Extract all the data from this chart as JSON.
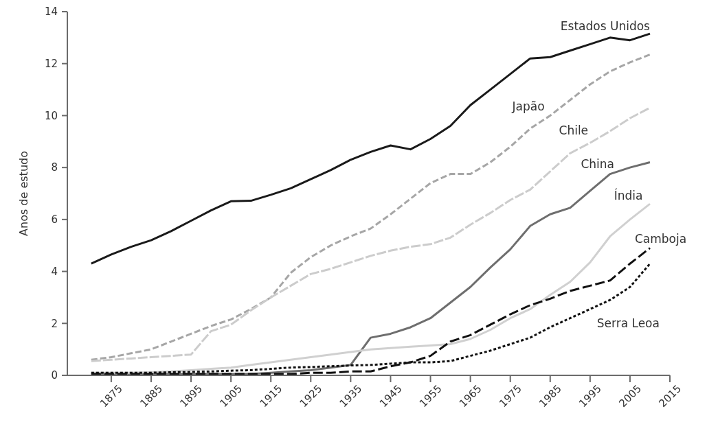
{
  "chart_data": {
    "type": "line",
    "ylabel": "Anos de estudo",
    "x": [
      1870,
      1875,
      1880,
      1885,
      1890,
      1895,
      1900,
      1905,
      1910,
      1915,
      1920,
      1925,
      1930,
      1935,
      1940,
      1945,
      1950,
      1955,
      1960,
      1965,
      1970,
      1975,
      1980,
      1985,
      1990,
      1995,
      2000,
      2005,
      2010
    ],
    "xlim": [
      1864,
      2015
    ],
    "xticks": [
      1875,
      1885,
      1895,
      1905,
      1915,
      1925,
      1935,
      1945,
      1955,
      1965,
      1975,
      1985,
      1995,
      2005,
      2015
    ],
    "ylim": [
      0,
      14
    ],
    "yticks": [
      0,
      2,
      4,
      6,
      8,
      10,
      12,
      14
    ],
    "marker": "none",
    "series": [
      {
        "name": "Estados Unidos",
        "color": "#1a1a1a",
        "line_style": "solid",
        "values": [
          4.3,
          4.65,
          4.95,
          5.2,
          5.55,
          5.95,
          6.35,
          6.7,
          6.72,
          6.95,
          7.2,
          7.55,
          7.9,
          8.3,
          8.6,
          8.85,
          8.7,
          9.1,
          9.6,
          10.4,
          11.0,
          11.6,
          12.2,
          12.25,
          12.5,
          12.75,
          13.0,
          12.9,
          13.15
        ]
      },
      {
        "name": "Japão",
        "color": "#a6a6a6",
        "line_style": "dashed",
        "values": [
          0.6,
          0.7,
          0.85,
          1.0,
          1.3,
          1.6,
          1.9,
          2.15,
          2.55,
          3.0,
          3.95,
          4.55,
          5.0,
          5.35,
          5.65,
          6.2,
          6.8,
          7.4,
          7.75,
          7.75,
          8.2,
          8.8,
          9.5,
          10.0,
          10.6,
          11.2,
          11.7,
          12.05,
          12.35
        ]
      },
      {
        "name": "Chile",
        "color": "#cccccc",
        "line_style": "dashed",
        "values": [
          0.55,
          0.6,
          0.65,
          0.7,
          0.75,
          0.8,
          1.7,
          1.95,
          2.5,
          3.0,
          3.45,
          3.9,
          4.1,
          4.35,
          4.6,
          4.8,
          4.95,
          5.05,
          5.3,
          5.8,
          6.25,
          6.75,
          7.15,
          7.85,
          8.55,
          8.95,
          9.4,
          9.9,
          10.3
        ]
      },
      {
        "name": "China",
        "color": "#6e6e6e",
        "line_style": "solid",
        "values": [
          0.05,
          0.05,
          0.05,
          0.05,
          0.05,
          0.05,
          0.05,
          0.05,
          0.05,
          0.1,
          0.15,
          0.2,
          0.3,
          0.4,
          1.45,
          1.6,
          1.85,
          2.2,
          2.8,
          3.4,
          4.15,
          4.85,
          5.75,
          6.2,
          6.45,
          7.1,
          7.75,
          8.0,
          8.2
        ]
      },
      {
        "name": "Índia",
        "color": "#d0d0d0",
        "line_style": "solid",
        "values": [
          0.1,
          0.1,
          0.1,
          0.12,
          0.15,
          0.2,
          0.25,
          0.3,
          0.4,
          0.5,
          0.6,
          0.7,
          0.8,
          0.9,
          1.0,
          1.05,
          1.1,
          1.15,
          1.2,
          1.4,
          1.75,
          2.2,
          2.55,
          3.1,
          3.6,
          4.35,
          5.35,
          6.0,
          6.6
        ]
      },
      {
        "name": "Camboja",
        "color": "#111111",
        "line_style": "dashed",
        "values": [
          0.05,
          0.05,
          0.05,
          0.05,
          0.05,
          0.05,
          0.05,
          0.05,
          0.05,
          0.05,
          0.05,
          0.1,
          0.1,
          0.15,
          0.15,
          0.35,
          0.5,
          0.75,
          1.3,
          1.55,
          1.95,
          2.35,
          2.7,
          2.95,
          3.25,
          3.45,
          3.65,
          4.3,
          4.9
        ]
      },
      {
        "name": "Serra Leoa",
        "color": "#111111",
        "line_style": "dotted",
        "values": [
          0.1,
          0.1,
          0.1,
          0.1,
          0.12,
          0.13,
          0.15,
          0.18,
          0.2,
          0.25,
          0.3,
          0.32,
          0.35,
          0.38,
          0.4,
          0.45,
          0.5,
          0.5,
          0.55,
          0.75,
          0.95,
          1.2,
          1.45,
          1.85,
          2.2,
          2.55,
          2.9,
          3.4,
          4.3
        ]
      }
    ]
  }
}
